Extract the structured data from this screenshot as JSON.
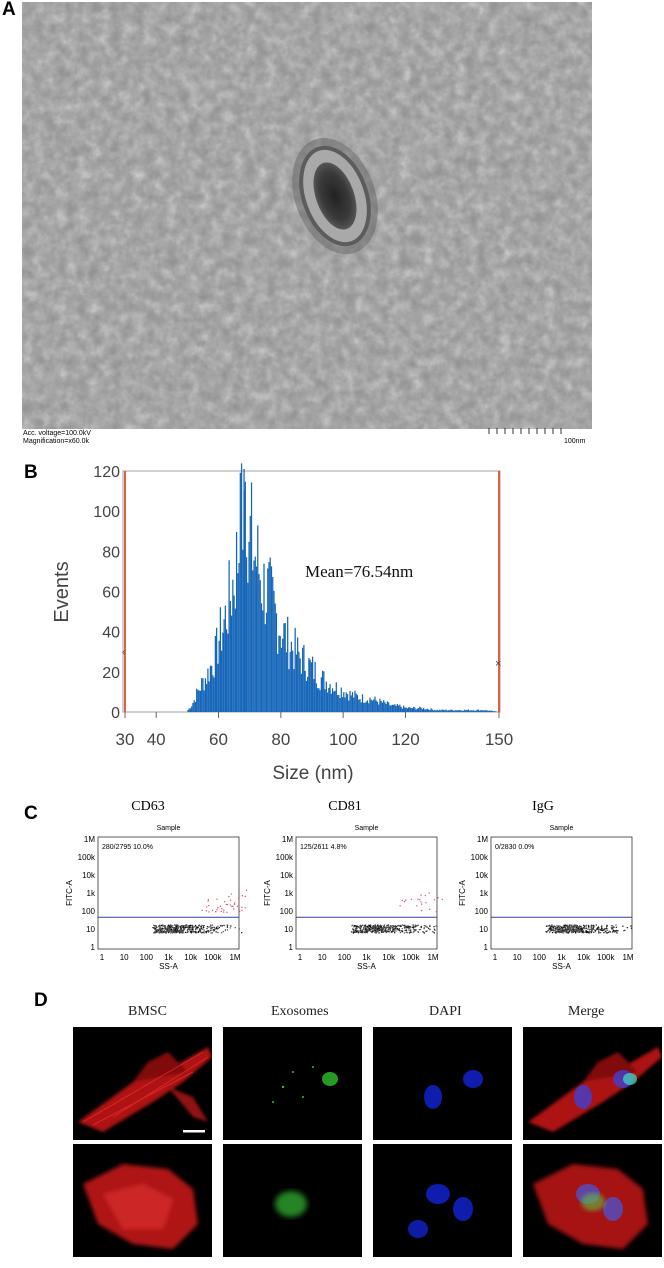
{
  "panels": {
    "a": "A",
    "b": "B",
    "c": "C",
    "d": "D"
  },
  "tem": {
    "voltage": "Acc. voltage=100.0kV",
    "magnification": "Magnification=x60.0k",
    "scale_label": "100nm"
  },
  "histogram": {
    "chart_data": {
      "type": "bar",
      "title": "",
      "xlabel": "Size (nm)",
      "ylabel": "Events",
      "xlim": [
        30,
        150
      ],
      "ylim": [
        0,
        120
      ],
      "xticks": [
        "30",
        "40",
        "60",
        "80",
        "100",
        "120",
        "150"
      ],
      "yticks": [
        "0",
        "20",
        "40",
        "60",
        "80",
        "100",
        "120"
      ],
      "annotation": "Mean=76.54nm",
      "bin_width": 0.4,
      "series_sample": [
        [
          50,
          1
        ],
        [
          51,
          3
        ],
        [
          52,
          6
        ],
        [
          53,
          10
        ],
        [
          54,
          13
        ],
        [
          55,
          16
        ],
        [
          56,
          18
        ],
        [
          57,
          22
        ],
        [
          58,
          25
        ],
        [
          59,
          30
        ],
        [
          60,
          38
        ],
        [
          61,
          42
        ],
        [
          62,
          48
        ],
        [
          63,
          55
        ],
        [
          64,
          62
        ],
        [
          65,
          70
        ],
        [
          66,
          80
        ],
        [
          67,
          95
        ],
        [
          68,
          110
        ],
        [
          69,
          98
        ],
        [
          70,
          90
        ],
        [
          71,
          82
        ],
        [
          72,
          78
        ],
        [
          73,
          72
        ],
        [
          74,
          65
        ],
        [
          75,
          62
        ],
        [
          76,
          60
        ],
        [
          77,
          55
        ],
        [
          78,
          50
        ],
        [
          79,
          46
        ],
        [
          80,
          42
        ],
        [
          82,
          36
        ],
        [
          84,
          32
        ],
        [
          86,
          28
        ],
        [
          88,
          25
        ],
        [
          90,
          22
        ],
        [
          92,
          18
        ],
        [
          94,
          16
        ],
        [
          96,
          14
        ],
        [
          98,
          12
        ],
        [
          100,
          11
        ],
        [
          102,
          9
        ],
        [
          104,
          8
        ],
        [
          106,
          7
        ],
        [
          108,
          7
        ],
        [
          110,
          6
        ],
        [
          112,
          5
        ],
        [
          114,
          4
        ],
        [
          116,
          3
        ],
        [
          118,
          3
        ],
        [
          120,
          2
        ],
        [
          125,
          2
        ],
        [
          130,
          1
        ],
        [
          135,
          1
        ],
        [
          140,
          1
        ],
        [
          145,
          1
        ],
        [
          150,
          0
        ]
      ]
    }
  },
  "facs": {
    "plots": [
      {
        "title": "CD63",
        "sample": "Sample",
        "stat": "280/2795  10.0%"
      },
      {
        "title": "CD81",
        "sample": "Sample",
        "stat": "125/2611  4.8%"
      },
      {
        "title": "IgG",
        "sample": "Sample",
        "stat": "0/2830  0.0%"
      }
    ],
    "yaxis_label": "FITC-A",
    "xaxis_label": "SS-A",
    "yticks": [
      "1M",
      "100k",
      "10k",
      "1k",
      "100",
      "10",
      "1"
    ],
    "xticks": [
      "1",
      "10",
      "100",
      "1k",
      "10k",
      "100k",
      "1M"
    ]
  },
  "fluorescence": {
    "columns": [
      "BMSC",
      "Exosomes",
      "DAPI",
      "Merge"
    ],
    "colors": {
      "actin": "#d02020",
      "exo": "#30c030",
      "dapi": "#2030d0"
    }
  }
}
